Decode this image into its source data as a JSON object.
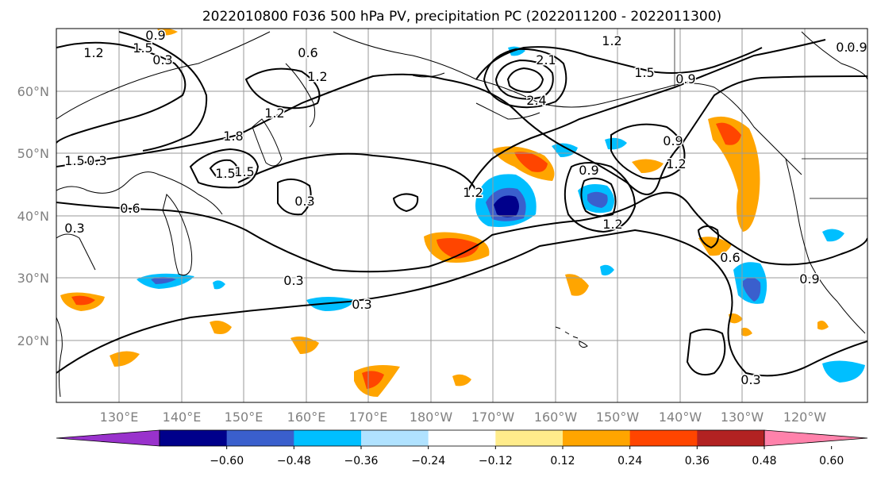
{
  "title": "2022010800 F036 500 hPa PV, precipitation PC (2022011200 - 2022011300)",
  "axes": {
    "lat_labels": [
      "20°N",
      "30°N",
      "40°N",
      "50°N",
      "60°N"
    ],
    "lon_labels": [
      "130°E",
      "140°E",
      "150°E",
      "160°E",
      "170°E",
      "180°W",
      "170°W",
      "160°W",
      "150°W",
      "140°W",
      "130°W",
      "120°W"
    ]
  },
  "colorbar": {
    "tick_labels": [
      "−0.60",
      "−0.48",
      "−0.36",
      "−0.24",
      "−0.12",
      "0.12",
      "0.24",
      "0.36",
      "0.48",
      "0.60"
    ],
    "colors": [
      "#9932cc",
      "#00008b",
      "#3a5fcd",
      "#00bfff",
      "#b0e2ff",
      "#ffffff",
      "#ffec8b",
      "#ffa500",
      "#ff4500",
      "#b22222",
      "#ff82ab"
    ]
  },
  "contour_labels": [
    "1.2",
    "1.5",
    "0.9",
    "0.3",
    "0.6",
    "1.2",
    "1.8",
    "1.5",
    "1.5",
    "1.2",
    "0.6",
    "0.3",
    "0.3",
    "0.3",
    "0.3",
    "1.2",
    "2.1",
    "2.4",
    "1.2",
    "1.5",
    "0.9",
    "0.9",
    "0.9",
    "1.2",
    "1.2",
    "0.9",
    "0.6",
    "0.3",
    "0.6",
    "0.9",
    "1.5",
    "0.3"
  ],
  "colors": {
    "grid": "#9a9a9a",
    "axis_label": "#808080",
    "contour": "#000000"
  }
}
